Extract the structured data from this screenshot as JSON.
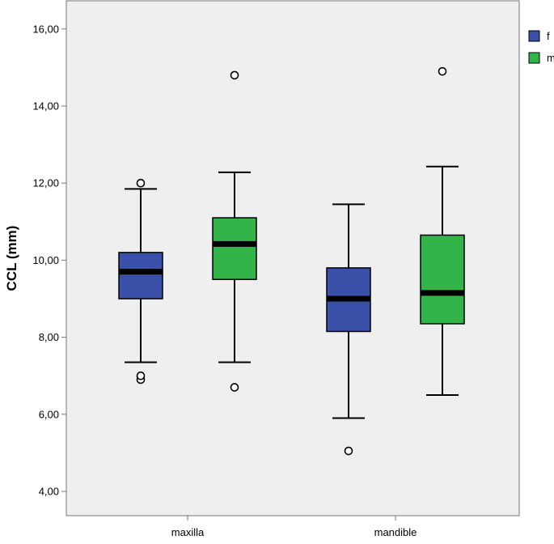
{
  "chart_data": {
    "type": "boxplot",
    "ylabel": "CCL (mm)",
    "xlabel": "",
    "ylim": [
      3.5,
      16.6
    ],
    "yticks": [
      "4,00",
      "6,00",
      "8,00",
      "10,00",
      "12,00",
      "14,00",
      "16,00"
    ],
    "ytick_values": [
      4,
      6,
      8,
      10,
      12,
      14,
      16
    ],
    "categories": [
      "maxilla",
      "mandible"
    ],
    "grid": false,
    "legend_position": "right",
    "series": [
      {
        "name": "f",
        "color": "#3b50a8",
        "boxes": [
          {
            "category": "maxilla",
            "whisker_low": 7.35,
            "q1": 9.0,
            "median": 9.7,
            "q3": 10.2,
            "whisker_high": 11.85,
            "outliers": [
              6.9,
              7.0,
              12.0
            ]
          },
          {
            "category": "mandible",
            "whisker_low": 5.9,
            "q1": 8.15,
            "median": 9.0,
            "q3": 9.8,
            "whisker_high": 11.45,
            "outliers": [
              5.05
            ]
          }
        ]
      },
      {
        "name": "m",
        "color": "#33b449",
        "boxes": [
          {
            "category": "maxilla",
            "whisker_low": 7.35,
            "q1": 9.5,
            "median": 10.42,
            "q3": 11.1,
            "whisker_high": 12.28,
            "outliers": [
              6.7,
              14.8
            ]
          },
          {
            "category": "mandible",
            "whisker_low": 6.5,
            "q1": 8.35,
            "median": 9.15,
            "q3": 10.65,
            "whisker_high": 12.43,
            "outliers": [
              14.9
            ]
          }
        ]
      }
    ]
  }
}
